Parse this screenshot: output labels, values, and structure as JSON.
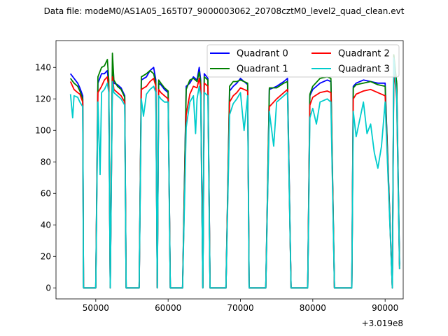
{
  "chart_data": {
    "type": "line",
    "title": "Data file: modeM0/AS1A05_165T07_9000003062_20708cztM0_level2_quad_clean.evt",
    "xlabel": "",
    "ylabel": "",
    "x_offset_label": "+3.019e8",
    "xlim": [
      44500,
      92500
    ],
    "ylim": [
      -7,
      157
    ],
    "xticks": [
      50000,
      60000,
      70000,
      80000,
      90000
    ],
    "xtick_labels": [
      "50000",
      "60000",
      "70000",
      "80000",
      "90000"
    ],
    "yticks": [
      0,
      20,
      40,
      60,
      80,
      100,
      120,
      140
    ],
    "ytick_labels": [
      "0",
      "20",
      "40",
      "60",
      "80",
      "100",
      "120",
      "140"
    ],
    "legend": {
      "position": "top-right",
      "columns": 2
    },
    "series": [
      {
        "name": "Quadrant 0",
        "color": "#0000ff",
        "x": [
          46500,
          47000,
          47500,
          47800,
          48200,
          48300,
          50000,
          50300,
          50800,
          51200,
          51600,
          51800,
          52000,
          52300,
          52500,
          53000,
          53500,
          54000,
          54200,
          56000,
          56300,
          57000,
          57500,
          58000,
          58300,
          58500,
          58700,
          59000,
          59500,
          60000,
          60300,
          62000,
          62500,
          63000,
          63500,
          64000,
          64300,
          64500,
          64800,
          65000,
          65500,
          65800,
          68000,
          68500,
          69000,
          69500,
          70000,
          71000,
          71200,
          71500,
          73500,
          74000,
          75000,
          76000,
          76500,
          77000,
          79300,
          79600,
          80000,
          81000,
          82000,
          82500,
          83000,
          85400,
          85600,
          86000,
          87000,
          88000,
          89000,
          90000,
          91000,
          91200,
          91600,
          92000
        ],
        "y": [
          136,
          133,
          130,
          127,
          122,
          0,
          0,
          130,
          136,
          136,
          138,
          128,
          0,
          137,
          130,
          129,
          127,
          122,
          0,
          0,
          132,
          134,
          138,
          140,
          132,
          0,
          130,
          129,
          126,
          124,
          0,
          0,
          128,
          130,
          134,
          132,
          140,
          132,
          0,
          136,
          133,
          0,
          0,
          125,
          128,
          130,
          133,
          129,
          0,
          0,
          0,
          126,
          128,
          131,
          133,
          0,
          0,
          122,
          126,
          130,
          132,
          131,
          0,
          0,
          128,
          130,
          132,
          131,
          130,
          130,
          0,
          145,
          130,
          15
        ],
        "values": [
          136,
          133,
          130,
          127,
          122,
          0,
          0,
          130,
          136,
          136,
          138,
          128,
          0,
          137,
          130,
          129,
          127,
          122,
          0,
          0,
          132,
          134,
          138,
          140,
          132,
          0,
          130,
          129,
          126,
          124,
          0,
          0,
          128,
          130,
          134,
          132,
          140,
          132,
          0,
          136,
          133,
          0,
          0,
          125,
          128,
          130,
          133,
          129,
          0,
          0,
          0,
          126,
          128,
          131,
          133,
          0,
          0,
          122,
          126,
          130,
          132,
          131,
          0,
          0,
          128,
          130,
          132,
          131,
          130,
          130,
          0,
          145,
          130,
          15
        ]
      },
      {
        "name": "Quadrant 1",
        "color": "#008000",
        "x": [
          46500,
          47000,
          47500,
          47800,
          48200,
          48300,
          50000,
          50300,
          50800,
          51200,
          51600,
          51800,
          52000,
          52300,
          52500,
          53000,
          53500,
          54000,
          54200,
          56000,
          56300,
          57000,
          57500,
          58000,
          58300,
          58500,
          58700,
          59000,
          59500,
          60000,
          60300,
          62000,
          62500,
          63000,
          63500,
          64000,
          64300,
          64500,
          64800,
          65000,
          65500,
          65800,
          68000,
          68500,
          69000,
          69500,
          70000,
          71000,
          71200,
          71500,
          73500,
          74000,
          75000,
          76000,
          76500,
          77000,
          79300,
          79600,
          80000,
          81000,
          82000,
          82500,
          83000,
          85400,
          85600,
          86000,
          87000,
          88000,
          89000,
          90000,
          91000,
          91200,
          91600,
          92000
        ],
        "y": [
          133,
          130,
          128,
          125,
          120,
          0,
          0,
          134,
          140,
          141,
          145,
          132,
          0,
          149,
          132,
          128,
          126,
          121,
          0,
          0,
          134,
          136,
          138,
          136,
          130,
          0,
          132,
          130,
          127,
          125,
          0,
          0,
          126,
          132,
          133,
          131,
          137,
          130,
          0,
          134,
          132,
          0,
          0,
          128,
          131,
          131,
          132,
          130,
          0,
          0,
          0,
          127,
          127,
          130,
          131,
          0,
          0,
          123,
          128,
          133,
          134,
          133,
          0,
          0,
          127,
          129,
          130,
          131,
          129,
          128,
          0,
          148,
          130,
          14
        ],
        "values": [
          133,
          130,
          128,
          125,
          120,
          0,
          0,
          134,
          140,
          141,
          145,
          132,
          0,
          149,
          132,
          128,
          126,
          121,
          0,
          0,
          134,
          136,
          138,
          136,
          130,
          0,
          132,
          130,
          127,
          125,
          0,
          0,
          126,
          132,
          133,
          131,
          137,
          130,
          0,
          134,
          132,
          0,
          0,
          128,
          131,
          131,
          132,
          130,
          0,
          0,
          0,
          127,
          127,
          130,
          131,
          0,
          0,
          123,
          128,
          133,
          134,
          133,
          0,
          0,
          127,
          129,
          130,
          131,
          129,
          128,
          0,
          148,
          130,
          14
        ]
      },
      {
        "name": "Quadrant 2",
        "color": "#ff0000",
        "x": [
          46500,
          47000,
          47500,
          47800,
          48200,
          48300,
          50000,
          50300,
          50800,
          51200,
          51600,
          51800,
          52000,
          52300,
          52500,
          53000,
          53500,
          54000,
          54200,
          56000,
          56300,
          57000,
          57500,
          58000,
          58300,
          58500,
          58700,
          59000,
          59500,
          60000,
          60300,
          62000,
          62500,
          63000,
          63500,
          64000,
          64300,
          64500,
          64800,
          65000,
          65500,
          65800,
          68000,
          68500,
          69000,
          69500,
          70000,
          71000,
          71200,
          71500,
          73500,
          74000,
          75000,
          76000,
          76500,
          77000,
          79300,
          79600,
          80000,
          81000,
          82000,
          82500,
          83000,
          85400,
          85600,
          86000,
          87000,
          88000,
          89000,
          90000,
          91000,
          91200,
          91600,
          92000
        ],
        "y": [
          131,
          126,
          124,
          123,
          118,
          0,
          0,
          124,
          128,
          132,
          134,
          126,
          0,
          134,
          126,
          124,
          122,
          118,
          0,
          0,
          126,
          128,
          131,
          133,
          128,
          0,
          126,
          124,
          122,
          120,
          0,
          0,
          110,
          123,
          128,
          127,
          133,
          127,
          0,
          130,
          128,
          0,
          0,
          118,
          122,
          124,
          127,
          125,
          0,
          0,
          0,
          115,
          120,
          124,
          126,
          0,
          0,
          116,
          121,
          124,
          125,
          124,
          0,
          0,
          120,
          123,
          125,
          126,
          124,
          122,
          0,
          140,
          120,
          12
        ],
        "values": [
          131,
          126,
          124,
          123,
          118,
          0,
          0,
          124,
          128,
          132,
          134,
          126,
          0,
          134,
          126,
          124,
          122,
          118,
          0,
          0,
          126,
          128,
          131,
          133,
          128,
          0,
          126,
          124,
          122,
          120,
          0,
          0,
          110,
          123,
          128,
          127,
          133,
          127,
          0,
          130,
          128,
          0,
          0,
          118,
          122,
          124,
          127,
          125,
          0,
          0,
          0,
          115,
          120,
          124,
          126,
          0,
          0,
          116,
          121,
          124,
          125,
          124,
          0,
          0,
          120,
          123,
          125,
          126,
          124,
          122,
          0,
          140,
          120,
          12
        ]
      },
      {
        "name": "Quadrant 3",
        "color": "#00cccc",
        "x": [
          46500,
          46800,
          47000,
          47500,
          47800,
          48200,
          48300,
          50000,
          50300,
          50600,
          50800,
          51200,
          51600,
          51800,
          52000,
          52300,
          52500,
          53000,
          53500,
          54000,
          54200,
          56000,
          56300,
          56600,
          57000,
          57500,
          58000,
          58300,
          58500,
          58700,
          59000,
          59500,
          60000,
          60300,
          62000,
          62500,
          63000,
          63500,
          63800,
          64000,
          64300,
          64500,
          64800,
          65000,
          65500,
          65800,
          68000,
          68500,
          69000,
          69500,
          70000,
          70500,
          71000,
          71200,
          71500,
          73500,
          74000,
          74600,
          75000,
          76000,
          76500,
          77000,
          79300,
          79600,
          80000,
          80500,
          81000,
          82000,
          82500,
          83000,
          85400,
          85600,
          86000,
          87000,
          87500,
          88000,
          88500,
          89000,
          89500,
          90000,
          91000,
          91200,
          91600,
          92000
        ],
        "y": [
          123,
          108,
          122,
          121,
          118,
          115,
          0,
          0,
          118,
          72,
          124,
          126,
          130,
          124,
          0,
          131,
          124,
          122,
          120,
          116,
          0,
          0,
          120,
          109,
          123,
          126,
          128,
          124,
          0,
          122,
          120,
          118,
          118,
          0,
          0,
          102,
          118,
          122,
          98,
          120,
          128,
          122,
          0,
          124,
          122,
          0,
          0,
          110,
          117,
          120,
          124,
          100,
          122,
          0,
          0,
          0,
          112,
          90,
          118,
          122,
          124,
          0,
          0,
          108,
          114,
          104,
          118,
          120,
          118,
          0,
          0,
          112,
          96,
          118,
          98,
          104,
          86,
          76,
          90,
          118,
          0,
          146,
          122,
          12
        ],
        "values": [
          123,
          108,
          122,
          121,
          118,
          115,
          0,
          0,
          118,
          72,
          124,
          126,
          130,
          124,
          0,
          131,
          124,
          122,
          120,
          116,
          0,
          0,
          120,
          109,
          123,
          126,
          128,
          124,
          0,
          122,
          120,
          118,
          118,
          0,
          0,
          102,
          118,
          122,
          98,
          120,
          128,
          122,
          0,
          124,
          122,
          0,
          0,
          110,
          117,
          120,
          124,
          100,
          122,
          0,
          0,
          0,
          112,
          90,
          118,
          122,
          124,
          0,
          0,
          108,
          114,
          104,
          118,
          120,
          118,
          0,
          0,
          112,
          96,
          118,
          98,
          104,
          86,
          76,
          90,
          118,
          0,
          146,
          122,
          12
        ]
      }
    ]
  }
}
